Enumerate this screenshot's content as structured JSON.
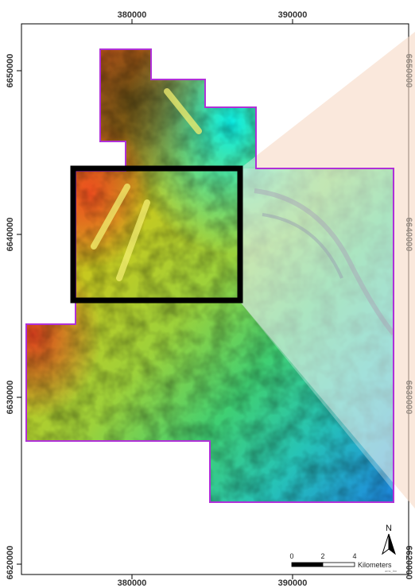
{
  "x_axis": {
    "top_labels": [
      "380000",
      "390000"
    ],
    "bottom_labels": [
      "380000",
      "390000"
    ]
  },
  "y_axis": {
    "left_labels": [
      "6650000",
      "6640000",
      "6630000",
      "6620000"
    ],
    "right_labels": [
      "6650000",
      "6640000",
      "6630000",
      "6620000"
    ]
  },
  "scale_bar": {
    "ticks": [
      "0",
      "2",
      "4"
    ],
    "unit": "Kilometers"
  },
  "north_arrow": {
    "label": "N",
    "icon": "north-arrow-icon"
  },
  "credit": "ams_ltm",
  "colors": {
    "outline": "#b030d8",
    "frame": "#000000",
    "inset_box": "#000000",
    "zoom_fan": "#f6d9c4"
  },
  "ramp_legend": [
    "red",
    "orange",
    "yellow",
    "green",
    "cyan",
    "blue"
  ]
}
